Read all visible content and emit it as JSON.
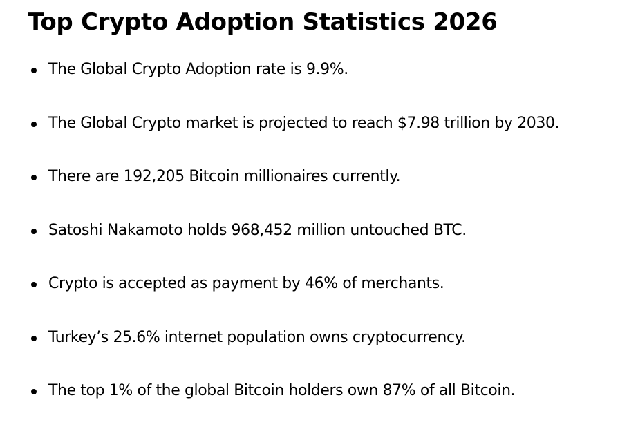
{
  "header": {
    "title": "Top Crypto Adoption Statistics 2026"
  },
  "list": {
    "items": [
      "The Global Crypto Adoption rate is 9.9%.",
      "The Global Crypto market is projected to reach $7.98 trillion by 2030.",
      "There are 192,205 Bitcoin millionaires currently.",
      "Satoshi Nakamoto holds 968,452 million untouched BTC.",
      "Crypto is accepted as payment by 46% of merchants.",
      "Turkey’s 25.6% internet population owns cryptocurrency.",
      "The top 1% of the global Bitcoin holders own 87% of all Bitcoin."
    ]
  }
}
